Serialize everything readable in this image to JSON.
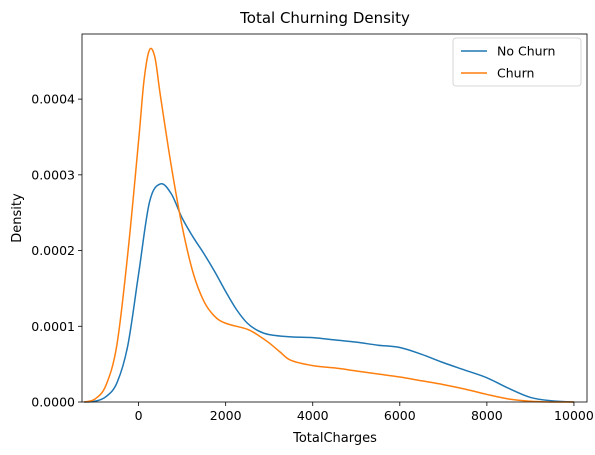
{
  "chart_data": {
    "type": "line",
    "title": "Total Churning Density",
    "xlabel": "TotalCharges",
    "ylabel": "Density",
    "xlim": [
      -1300,
      10300
    ],
    "ylim": [
      0,
      0.000486
    ],
    "x_ticks": [
      0,
      2000,
      4000,
      6000,
      8000,
      10000
    ],
    "x_tick_labels": [
      "0",
      "2000",
      "4000",
      "6000",
      "8000",
      "10000"
    ],
    "y_ticks": [
      0,
      0.0001,
      0.0002,
      0.0003,
      0.0004
    ],
    "y_tick_labels": [
      "0.0000",
      "0.0001",
      "0.0002",
      "0.0003",
      "0.0004"
    ],
    "grid": false,
    "legend_position": "top-right",
    "series": [
      {
        "name": "No Churn",
        "color": "#1f77b4",
        "points": [
          [
            -1250,
            0.0
          ],
          [
            -1000,
            1e-06
          ],
          [
            -750,
            7e-06
          ],
          [
            -500,
            2.5e-05
          ],
          [
            -250,
            7.4e-05
          ],
          [
            0,
            0.000169
          ],
          [
            250,
            0.000264
          ],
          [
            500,
            0.000288
          ],
          [
            750,
            0.000275
          ],
          [
            1000,
            0.000243
          ],
          [
            1250,
            0.000218
          ],
          [
            1500,
            0.000196
          ],
          [
            1750,
            0.000172
          ],
          [
            2000,
            0.000146
          ],
          [
            2250,
            0.000122
          ],
          [
            2500,
            0.000104
          ],
          [
            2750,
            9.4e-05
          ],
          [
            3000,
            8.9e-05
          ],
          [
            3500,
            8.6e-05
          ],
          [
            4000,
            8.5e-05
          ],
          [
            4500,
            8.2e-05
          ],
          [
            5000,
            7.9e-05
          ],
          [
            5500,
            7.5e-05
          ],
          [
            6000,
            7.2e-05
          ],
          [
            6500,
            6.3e-05
          ],
          [
            7000,
            5.2e-05
          ],
          [
            7500,
            4.2e-05
          ],
          [
            8000,
            3.2e-05
          ],
          [
            8500,
            1.8e-05
          ],
          [
            9000,
            6e-06
          ],
          [
            9500,
            1.5e-06
          ],
          [
            10000,
            0.0
          ]
        ]
      },
      {
        "name": "Churn",
        "color": "#ff7f0e",
        "points": [
          [
            -1250,
            0.0
          ],
          [
            -1000,
            4e-06
          ],
          [
            -750,
            2.2e-05
          ],
          [
            -500,
            7.5e-05
          ],
          [
            -250,
            0.000195
          ],
          [
            0,
            0.000345
          ],
          [
            125,
            0.000425
          ],
          [
            250,
            0.000465
          ],
          [
            375,
            0.000455
          ],
          [
            500,
            0.000405
          ],
          [
            750,
            0.000312
          ],
          [
            1000,
            0.000232
          ],
          [
            1250,
            0.000171
          ],
          [
            1500,
            0.000133
          ],
          [
            1750,
            0.000113
          ],
          [
            2000,
            0.000104
          ],
          [
            2500,
            9.6e-05
          ],
          [
            2750,
            8.8e-05
          ],
          [
            3000,
            7.8e-05
          ],
          [
            3250,
            6.6e-05
          ],
          [
            3500,
            5.5e-05
          ],
          [
            4000,
            4.8e-05
          ],
          [
            4500,
            4.5e-05
          ],
          [
            5000,
            4.1e-05
          ],
          [
            5500,
            3.7e-05
          ],
          [
            6000,
            3.3e-05
          ],
          [
            6500,
            2.8e-05
          ],
          [
            7000,
            2.3e-05
          ],
          [
            7500,
            1.7e-05
          ],
          [
            8000,
            1e-05
          ],
          [
            8500,
            4e-06
          ],
          [
            9000,
            1e-06
          ],
          [
            9500,
            0.0
          ],
          [
            10000,
            0.0
          ]
        ]
      }
    ]
  }
}
